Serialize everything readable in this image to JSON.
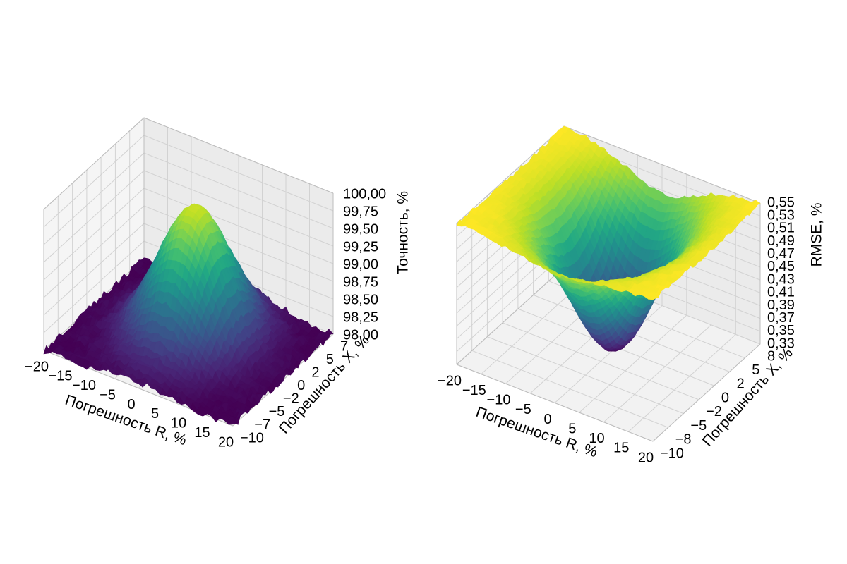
{
  "chart_data": [
    {
      "type": "surface3d",
      "title": "",
      "xlabel": "Погрешность R, %",
      "ylabel": "Погрешность X, %",
      "zlabel": "Точность, %",
      "x_ticks": [
        "−20",
        "−15",
        "−10",
        "−5",
        "0",
        "5",
        "10",
        "15",
        "20"
      ],
      "y_ticks": [
        "−10",
        "−7",
        "−5",
        "−2",
        "0",
        "2",
        "5",
        "7"
      ],
      "z_ticks": [
        "98,00",
        "98,25",
        "98,50",
        "98,75",
        "99,00",
        "99,25",
        "99,50",
        "99,75",
        "100,00"
      ],
      "xlim": [
        -20,
        20
      ],
      "ylim": [
        -10,
        8
      ],
      "zlim": [
        98.0,
        100.0
      ],
      "surface": {
        "shape": "peak",
        "base": 98.0,
        "peak": 99.85,
        "center": [
          0,
          0
        ],
        "sigma": [
          6.5,
          4.0
        ]
      },
      "colormap": "viridis",
      "grid": true
    },
    {
      "type": "surface3d",
      "title": "",
      "xlabel": "Погрешность R, %",
      "ylabel": "Погрешность X, %",
      "zlabel": "RMSE, %",
      "x_ticks": [
        "−20",
        "−15",
        "−10",
        "−5",
        "0",
        "5",
        "10",
        "15",
        "20"
      ],
      "y_ticks": [
        "−10",
        "−8",
        "−5",
        "−2",
        "0",
        "2",
        "5",
        "8"
      ],
      "z_ticks": [
        "0,33",
        "0,35",
        "0,37",
        "0,39",
        "0,41",
        "0,43",
        "0,45",
        "0,47",
        "0,49",
        "0,51",
        "0,53",
        "0,55"
      ],
      "xlim": [
        -20,
        20
      ],
      "ylim": [
        -10,
        8
      ],
      "zlim": [
        0.33,
        0.55
      ],
      "surface": {
        "shape": "well",
        "base": 0.55,
        "min": 0.33,
        "center": [
          0,
          0
        ],
        "sigma": [
          7.0,
          4.5
        ]
      },
      "colormap": "viridis",
      "grid": true
    }
  ]
}
